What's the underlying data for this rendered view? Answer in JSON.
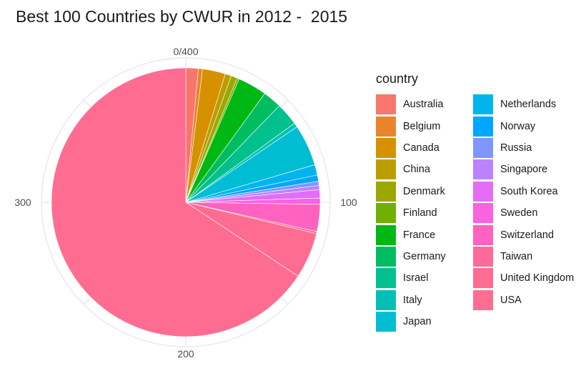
{
  "title": "Best 100 Countries by CWUR in 2012 -  2015",
  "chart_data": {
    "type": "pie",
    "title": "Best 100 Countries by CWUR in 2012 -  2015",
    "legend_title": "country",
    "legend_position": "right",
    "grid": true,
    "axis_range": [
      0,
      400
    ],
    "ticks": [
      {
        "value": 0,
        "label": "0/400"
      },
      {
        "value": 100,
        "label": "100"
      },
      {
        "value": 200,
        "label": "200"
      },
      {
        "value": 300,
        "label": "300"
      }
    ],
    "slices": [
      {
        "label": "Australia",
        "value": 6,
        "color": "#F8766D"
      },
      {
        "label": "Belgium",
        "value": 2,
        "color": "#E9842C"
      },
      {
        "label": "Canada",
        "value": 11,
        "color": "#D69100"
      },
      {
        "label": "China",
        "value": 3,
        "color": "#BC9D00"
      },
      {
        "label": "Denmark",
        "value": 3,
        "color": "#9CA700"
      },
      {
        "label": "Finland",
        "value": 1,
        "color": "#6FB000"
      },
      {
        "label": "France",
        "value": 14,
        "color": "#00B813"
      },
      {
        "label": "Germany",
        "value": 9,
        "color": "#00BD61"
      },
      {
        "label": "Israel",
        "value": 11,
        "color": "#00C08E"
      },
      {
        "label": "Italy",
        "value": 2,
        "color": "#00C0B4"
      },
      {
        "label": "Japan",
        "value": 20,
        "color": "#00BDD4"
      },
      {
        "label": "Netherlands",
        "value": 5,
        "color": "#00B5EE"
      },
      {
        "label": "Norway",
        "value": 3,
        "color": "#00A7FF"
      },
      {
        "label": "Russia",
        "value": 2,
        "color": "#7F96FF"
      },
      {
        "label": "Singapore",
        "value": 2,
        "color": "#BC81FF"
      },
      {
        "label": "South Korea",
        "value": 4,
        "color": "#E26EF7"
      },
      {
        "label": "Sweden",
        "value": 3,
        "color": "#F863DF"
      },
      {
        "label": "Switzerland",
        "value": 13,
        "color": "#FF62BF"
      },
      {
        "label": "Taiwan",
        "value": 1,
        "color": "#FF6A9A"
      },
      {
        "label": "United Kingdom",
        "value": 22,
        "color": "#FF6C91"
      },
      {
        "label": "USA",
        "value": 263,
        "color": "#FF6C91"
      }
    ]
  }
}
